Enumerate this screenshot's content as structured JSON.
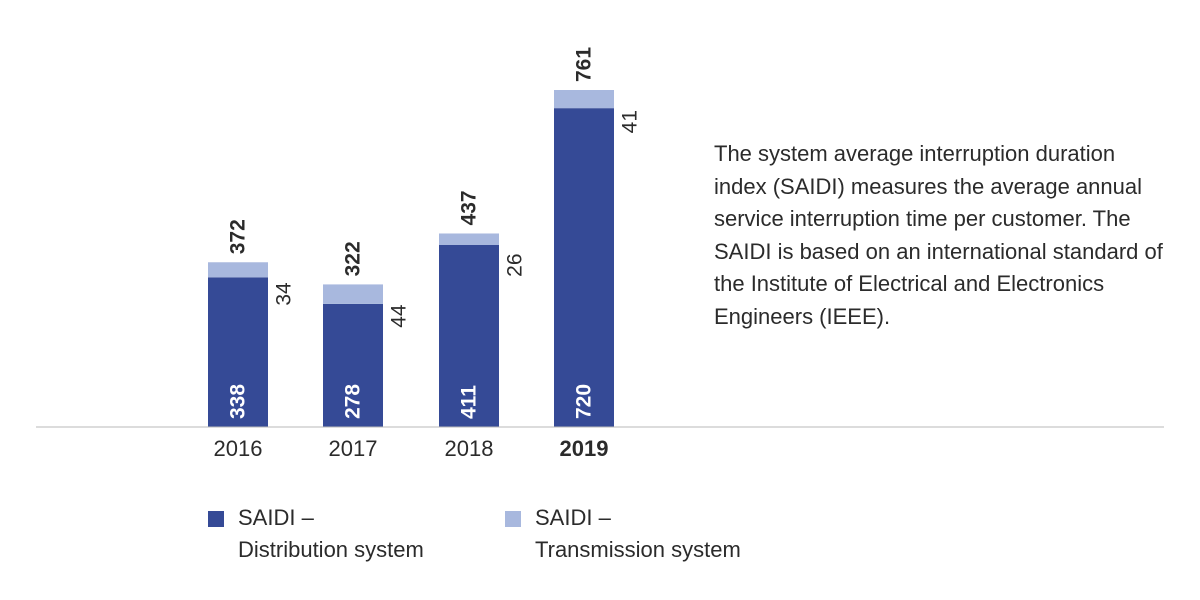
{
  "chart_data": {
    "type": "bar",
    "stacked": true,
    "categories": [
      "2016",
      "2017",
      "2018",
      "2019"
    ],
    "highlight_category": "2019",
    "series": [
      {
        "name": "SAIDI – Distribution system",
        "values": [
          338,
          278,
          411,
          720
        ],
        "color": "#354a96"
      },
      {
        "name": "SAIDI – Transmission system",
        "values": [
          34,
          44,
          26,
          41
        ],
        "color": "#a8b8de"
      }
    ],
    "totals": [
      372,
      322,
      437,
      761
    ],
    "legend_position": "bottom-left",
    "grid": false
  },
  "legend": {
    "distribution": {
      "line1": "SAIDI –",
      "line2": "Distribution system"
    },
    "transmission": {
      "line1": "SAIDI –",
      "line2": "Transmission system"
    }
  },
  "description": "The system average interruption duration index (SAIDI) measures the average annual service interruption time per customer. The SAIDI is based on an international standard of the Institute of Electrical and Electronics Engineers (IEEE)."
}
